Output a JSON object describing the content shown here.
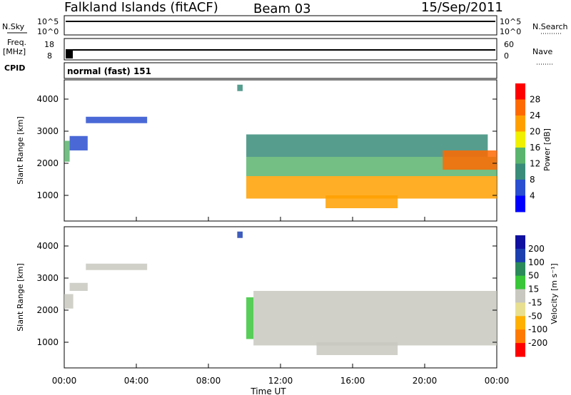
{
  "header": {
    "station": "Falkland Islands (fitACF)",
    "beam": "Beam 03",
    "date": "15/Sep/2011"
  },
  "strip_panels": {
    "nsky_label": "N.Sky",
    "nsky_ticks": [
      "10^5",
      "10^0"
    ],
    "nsearch_label": "N.Search",
    "nsearch_ticks": [
      "10^5",
      "10^0"
    ],
    "freq_label": "Freq.",
    "freq_unit": "[MHz]",
    "freq_ticks": [
      "18",
      "8"
    ],
    "nave_label": "Nave",
    "nave_ticks": [
      "60",
      "0"
    ],
    "cpid_label": "CPID",
    "cpid_value": "normal (fast) 151"
  },
  "colors": {
    "power_scale": [
      "#0000ff",
      "#2a4fd0",
      "#3a8c7a",
      "#5ab46e",
      "#f0f000",
      "#ffa000",
      "#ff6a00",
      "#ff0000"
    ],
    "velocity_scale": [
      "#ff0000",
      "#ff7a00",
      "#ffb000",
      "#e8e090",
      "#c8c8c0",
      "#39c639",
      "#2a8a5a",
      "#1c3fb0",
      "#1010a0"
    ]
  },
  "power_colorbar": {
    "label": "Power [dB]",
    "ticks": [
      "28",
      "24",
      "20",
      "16",
      "12",
      "8",
      "4"
    ]
  },
  "velocity_colorbar": {
    "label": "Velocity [m s⁻¹]",
    "ticks": [
      "200",
      "100",
      "50",
      "15",
      "-15",
      "-50",
      "-100",
      "-200"
    ]
  },
  "chart_data": [
    {
      "type": "heatmap",
      "title": "",
      "xlabel": "Time UT",
      "ylabel": "Slant Range [km]",
      "x_ticks": [
        "00:00",
        "04:00",
        "08:00",
        "12:00",
        "16:00",
        "20:00",
        "00:00"
      ],
      "y_ticks": [
        "4000",
        "3000",
        "2000",
        "1000"
      ],
      "xlim_hours": [
        0,
        24
      ],
      "ylim_km": [
        200,
        4600
      ],
      "colorbar": "Power [dB]",
      "clim": [
        0,
        30
      ],
      "regions": [
        {
          "start_h": 0.0,
          "end_h": 0.3,
          "range_low_km": 2050,
          "range_high_km": 2700,
          "value": 14
        },
        {
          "start_h": 0.3,
          "end_h": 1.3,
          "range_low_km": 2400,
          "range_high_km": 2850,
          "value": 6
        },
        {
          "start_h": 1.2,
          "end_h": 4.6,
          "range_low_km": 3250,
          "range_high_km": 3450,
          "value": 7
        },
        {
          "start_h": 9.6,
          "end_h": 9.9,
          "range_low_km": 4250,
          "range_high_km": 4450,
          "value": 8
        },
        {
          "start_h": 10.1,
          "end_h": 23.5,
          "range_low_km": 2200,
          "range_high_km": 2900,
          "value": 8
        },
        {
          "start_h": 10.1,
          "end_h": 24.0,
          "range_low_km": 1600,
          "range_high_km": 2200,
          "value": 13
        },
        {
          "start_h": 10.1,
          "end_h": 24.0,
          "range_low_km": 900,
          "range_high_km": 1600,
          "value": 22
        },
        {
          "start_h": 14.5,
          "end_h": 18.5,
          "range_low_km": 600,
          "range_high_km": 1000,
          "value": 21
        },
        {
          "start_h": 21.0,
          "end_h": 24.0,
          "range_low_km": 1800,
          "range_high_km": 2400,
          "value": 25
        }
      ]
    },
    {
      "type": "heatmap",
      "title": "",
      "xlabel": "Time UT",
      "ylabel": "Slant Range [km]",
      "x_ticks": [
        "00:00",
        "04:00",
        "08:00",
        "12:00",
        "16:00",
        "20:00",
        "00:00"
      ],
      "y_ticks": [
        "4000",
        "3000",
        "2000",
        "1000"
      ],
      "xlim_hours": [
        0,
        24
      ],
      "ylim_km": [
        200,
        4600
      ],
      "colorbar": "Velocity [m s⁻¹]",
      "clim": [
        -250,
        250
      ],
      "regions": [
        {
          "start_h": 0.0,
          "end_h": 0.5,
          "range_low_km": 2050,
          "range_high_km": 2500,
          "value": -20
        },
        {
          "start_h": 0.3,
          "end_h": 1.3,
          "range_low_km": 2600,
          "range_high_km": 2850,
          "value": 0
        },
        {
          "start_h": 1.2,
          "end_h": 4.6,
          "range_low_km": 3250,
          "range_high_km": 3450,
          "value": 0
        },
        {
          "start_h": 9.6,
          "end_h": 9.9,
          "range_low_km": 4250,
          "range_high_km": 4450,
          "value": 150
        },
        {
          "start_h": 10.1,
          "end_h": 10.5,
          "range_low_km": 1100,
          "range_high_km": 2400,
          "value": 60
        },
        {
          "start_h": 10.5,
          "end_h": 24.0,
          "range_low_km": 900,
          "range_high_km": 2600,
          "value": 0
        },
        {
          "start_h": 14.0,
          "end_h": 18.5,
          "range_low_km": 600,
          "range_high_km": 1000,
          "value": 0
        }
      ]
    }
  ]
}
